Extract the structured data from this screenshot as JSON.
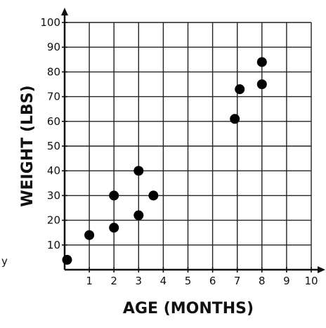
{
  "chart_data": {
    "type": "scatter",
    "title": "",
    "xlabel": "AGE (MONTHS)",
    "ylabel": "WEIGHT (LBS)",
    "xlim": [
      0,
      10
    ],
    "ylim": [
      0,
      100
    ],
    "x_ticks": [
      1,
      2,
      3,
      4,
      5,
      6,
      7,
      8,
      9,
      10
    ],
    "y_ticks": [
      10,
      20,
      30,
      40,
      50,
      60,
      70,
      80,
      90,
      100
    ],
    "grid": true,
    "point_color": "#000000",
    "points": [
      {
        "x": 0.1,
        "y": 4
      },
      {
        "x": 1,
        "y": 14
      },
      {
        "x": 2,
        "y": 17
      },
      {
        "x": 2,
        "y": 30
      },
      {
        "x": 3,
        "y": 22
      },
      {
        "x": 3,
        "y": 40
      },
      {
        "x": 3.6,
        "y": 30
      },
      {
        "x": 6.9,
        "y": 61
      },
      {
        "x": 7.1,
        "y": 73
      },
      {
        "x": 8,
        "y": 75
      },
      {
        "x": 8,
        "y": 84
      }
    ]
  },
  "edge_text": "y"
}
